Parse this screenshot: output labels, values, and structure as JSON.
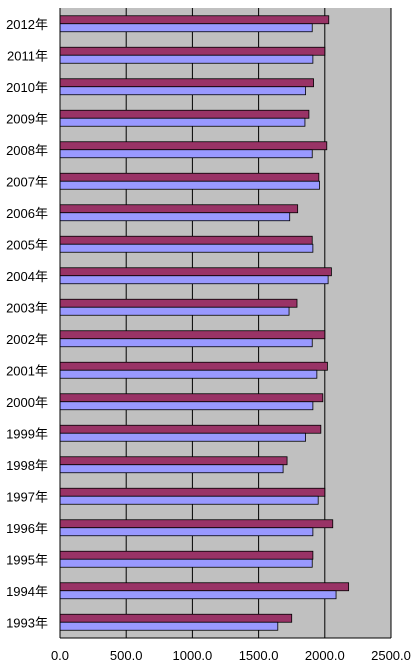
{
  "chart_data": {
    "type": "bar",
    "orientation": "horizontal",
    "categories": [
      "2012年",
      "2011年",
      "2010年",
      "2009年",
      "2008年",
      "2007年",
      "2006年",
      "2005年",
      "2004年",
      "2003年",
      "2002年",
      "2001年",
      "2000年",
      "1999年",
      "1998年",
      "1997年",
      "1996年",
      "1995年",
      "1994年",
      "1993年"
    ],
    "series": [
      {
        "color": "#993366",
        "values": [
          2030,
          2000,
          1915,
          1880,
          2015,
          1955,
          1795,
          1905,
          2050,
          1790,
          2000,
          2020,
          1985,
          1970,
          1715,
          2000,
          2060,
          1910,
          2180,
          1750
        ]
      },
      {
        "color": "#9999ff",
        "values": [
          1905,
          1910,
          1855,
          1850,
          1905,
          1960,
          1735,
          1910,
          2025,
          1730,
          1905,
          1940,
          1910,
          1855,
          1685,
          1950,
          1910,
          1905,
          2085,
          1645
        ]
      }
    ],
    "xlim": [
      0,
      2500
    ],
    "xticks": [
      "0.0",
      "500.0",
      "1000.0",
      "1500.0",
      "2000.0",
      "2500.0"
    ],
    "gridlines": true,
    "plot_background": "#c0c0c0",
    "title": "",
    "xlabel": "",
    "ylabel": ""
  }
}
